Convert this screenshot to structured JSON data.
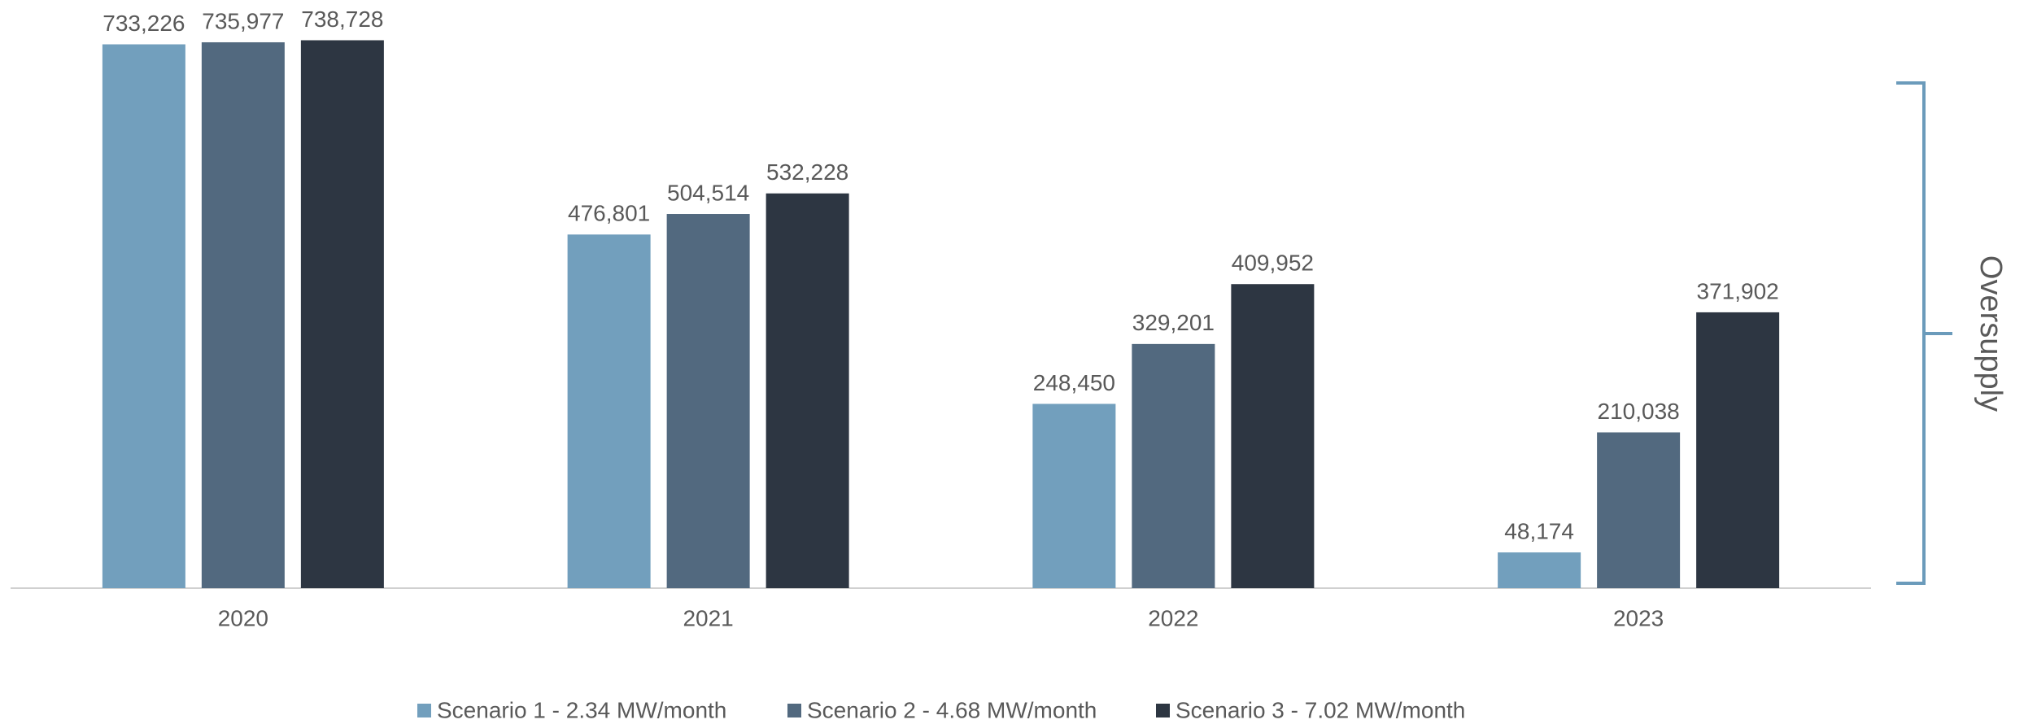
{
  "chart_data": {
    "type": "bar",
    "categories": [
      "2020",
      "2021",
      "2022",
      "2023"
    ],
    "series": [
      {
        "name": "Scenario 1 - 2.34 MW/month",
        "color": "#729fbd",
        "values": [
          733226,
          476801,
          248450,
          48174
        ],
        "value_labels": [
          "733,226",
          "476,801",
          "248,450",
          "48,174"
        ]
      },
      {
        "name": "Scenario 2 - 4.68 MW/month",
        "color": "#52697f",
        "values": [
          735977,
          504514,
          329201,
          210038
        ],
        "value_labels": [
          "735,977",
          "504,514",
          "329,201",
          "210,038"
        ]
      },
      {
        "name": "Scenario 3 - 7.02 MW/month",
        "color": "#2d3642",
        "values": [
          738728,
          532228,
          409952,
          371902
        ],
        "value_labels": [
          "738,728",
          "532,228",
          "409,952",
          "371,902"
        ]
      }
    ],
    "ylim": [
      0,
      793000
    ],
    "annotation": "Oversupply",
    "legend": "bottom"
  }
}
